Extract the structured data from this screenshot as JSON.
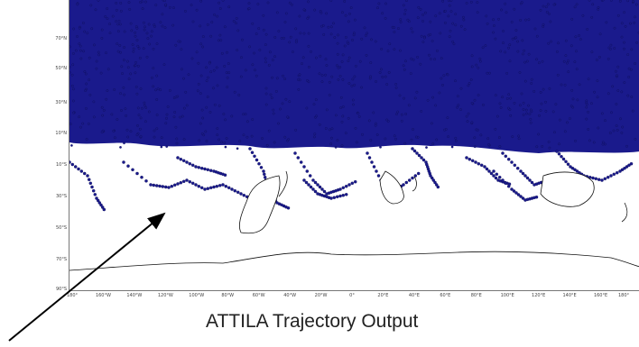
{
  "caption": "ATTILA Trajectory Output",
  "colors": {
    "particle": "#1a1a8c",
    "particle_outline": "#0a0a4a",
    "coastline": "#111111",
    "background": "#ffffff"
  },
  "latitude_labels": [
    "70°N",
    "50°N",
    "30°N",
    "10°N",
    "10°S",
    "30°S",
    "50°S",
    "70°S",
    "90°S"
  ],
  "longitude_labels": [
    "180°",
    "160°W",
    "140°W",
    "120°W",
    "100°W",
    "80°W",
    "60°W",
    "40°W",
    "20°W",
    "0°",
    "20°E",
    "40°E",
    "60°E",
    "80°E",
    "100°E",
    "120°E",
    "140°E",
    "160°E",
    "180°"
  ],
  "annotation": {
    "arrow": "pointer-arrow"
  }
}
